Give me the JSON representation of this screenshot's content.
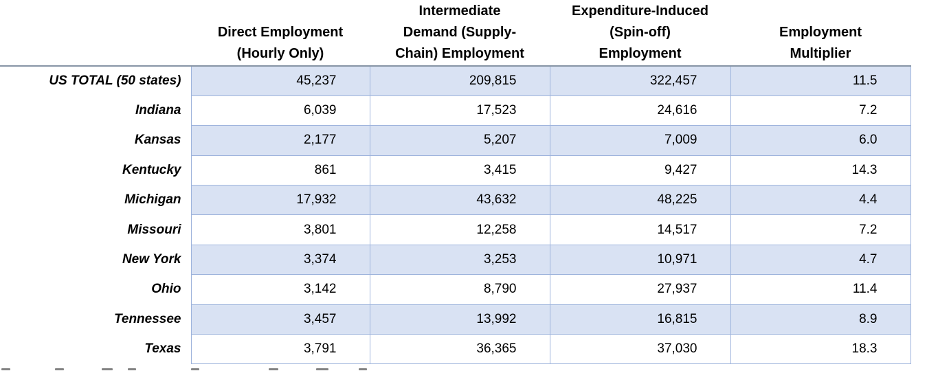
{
  "chart_data": {
    "type": "table",
    "title": "",
    "corner_label": "",
    "columns": [
      "Direct Employment\n(Hourly Only)",
      "Intermediate\nDemand (Supply-\nChain) Employment",
      "Expenditure-Induced\n(Spin-off)\nEmployment",
      "Employment\nMultiplier"
    ],
    "rows": [
      {
        "label": "US TOTAL (50 states)",
        "values": [
          "45,237",
          "209,815",
          "322,457",
          "11.5"
        ]
      },
      {
        "label": "Indiana",
        "values": [
          "6,039",
          "17,523",
          "24,616",
          "7.2"
        ]
      },
      {
        "label": "Kansas",
        "values": [
          "2,177",
          "5,207",
          "7,009",
          "6.0"
        ]
      },
      {
        "label": "Kentucky",
        "values": [
          "861",
          "3,415",
          "9,427",
          "14.3"
        ]
      },
      {
        "label": "Michigan",
        "values": [
          "17,932",
          "43,632",
          "48,225",
          "4.4"
        ]
      },
      {
        "label": "Missouri",
        "values": [
          "3,801",
          "12,258",
          "14,517",
          "7.2"
        ]
      },
      {
        "label": "New York",
        "values": [
          "3,374",
          "3,253",
          "10,971",
          "4.7"
        ]
      },
      {
        "label": "Ohio",
        "values": [
          "3,142",
          "8,790",
          "27,937",
          "11.4"
        ]
      },
      {
        "label": "Tennessee",
        "values": [
          "3,457",
          "13,992",
          "16,815",
          "8.9"
        ]
      },
      {
        "label": "Texas",
        "values": [
          "3,791",
          "36,365",
          "37,030",
          "18.3"
        ]
      }
    ],
    "layout": {
      "banded_rows": true,
      "band_start": "first-data-row"
    }
  },
  "colors": {
    "band_fill": "#D9E2F3",
    "grid_border": "#9DB3DC",
    "header_rule": "#8795A6",
    "text": "#000000",
    "background": "#ffffff"
  }
}
